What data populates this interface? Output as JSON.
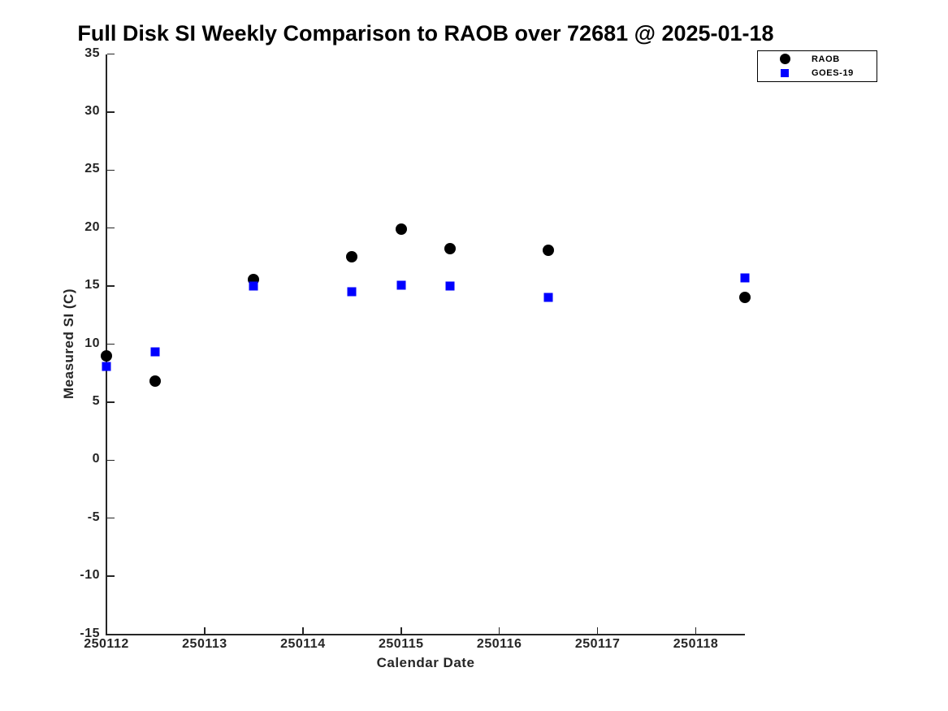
{
  "chart_data": {
    "type": "scatter",
    "title": "Full Disk SI Weekly Comparison to RAOB over 72681 @ 2025-01-18",
    "xlabel": "Calendar Date",
    "ylabel": "Measured SI (C)",
    "xlim": [
      250112,
      250118.5
    ],
    "ylim": [
      -15,
      35
    ],
    "x_ticks": [
      250112,
      250113,
      250114,
      250115,
      250116,
      250117,
      250118
    ],
    "y_ticks": [
      35,
      30,
      25,
      20,
      15,
      10,
      5,
      0,
      -5,
      -10,
      -15
    ],
    "grid": false,
    "legend": {
      "position": "top-right",
      "entries": [
        {
          "label": "RAOB",
          "marker": "circle",
          "color": "#000000"
        },
        {
          "label": "GOES-19",
          "marker": "square",
          "color": "#0000FF"
        }
      ]
    },
    "series": [
      {
        "name": "RAOB",
        "marker": "circle",
        "color": "#000000",
        "x": [
          250112.0,
          250112.5,
          250113.5,
          250114.5,
          250115.0,
          250115.5,
          250116.5,
          250118.5
        ],
        "y": [
          9.0,
          6.8,
          15.6,
          17.5,
          19.9,
          18.2,
          18.1,
          14.0
        ]
      },
      {
        "name": "GOES-19",
        "marker": "square",
        "color": "#0000FF",
        "x": [
          250112.0,
          250112.5,
          250113.5,
          250114.5,
          250115.0,
          250115.5,
          250116.5,
          250118.5
        ],
        "y": [
          8.1,
          9.3,
          15.0,
          14.5,
          15.1,
          15.0,
          14.0,
          15.7
        ]
      }
    ]
  },
  "colors": {
    "axis": "#262626",
    "title": "#000000",
    "background": "#ffffff"
  }
}
